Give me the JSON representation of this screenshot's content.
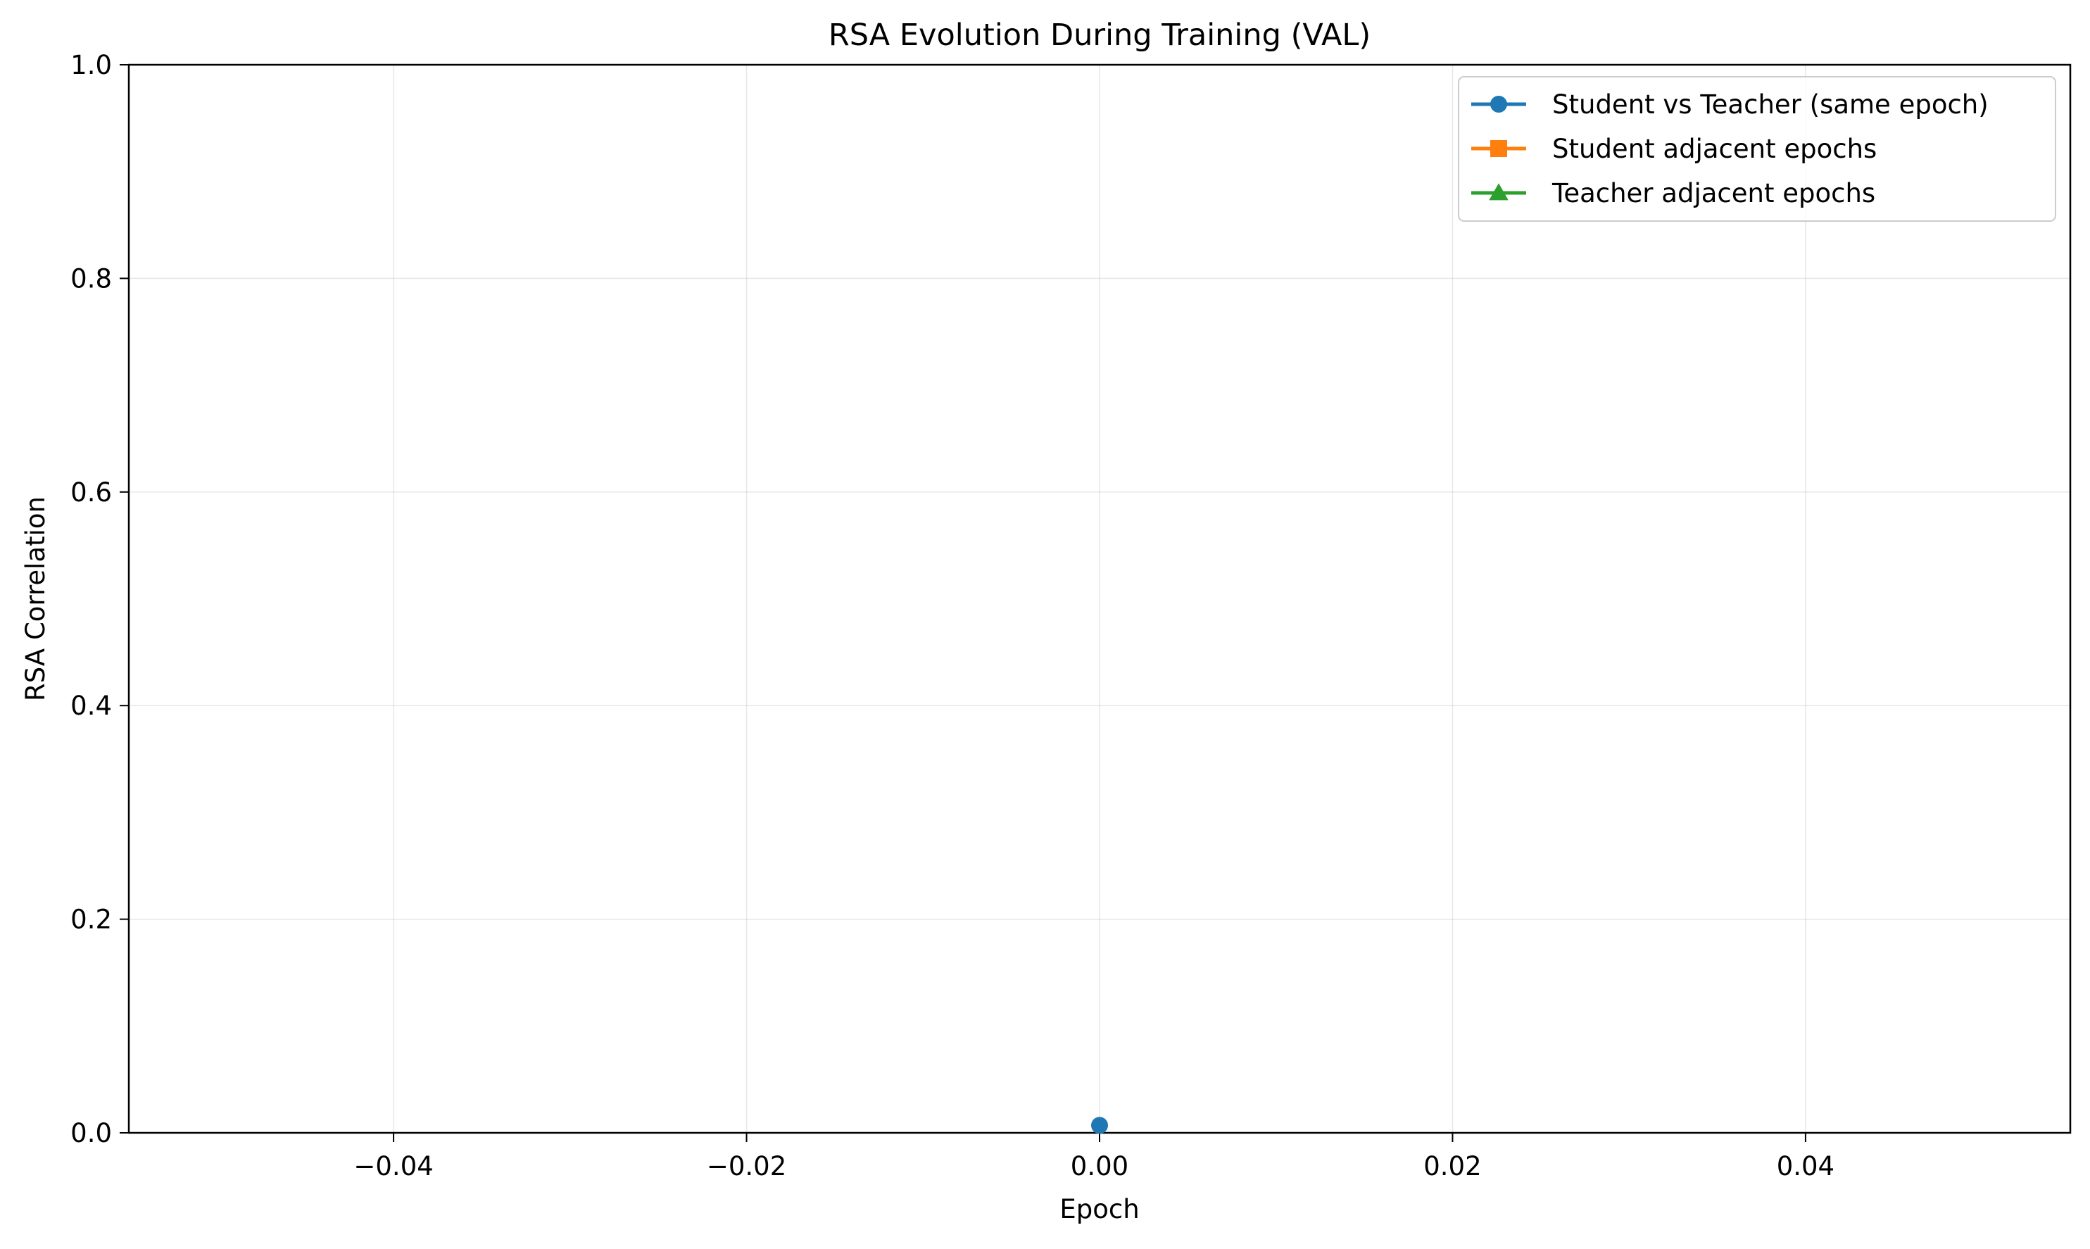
{
  "chart_data": {
    "type": "line",
    "title": "RSA Evolution During Training (VAL)",
    "xlabel": "Epoch",
    "ylabel": "RSA Correlation",
    "xlim": [
      -0.055,
      0.055
    ],
    "ylim": [
      0,
      1.0
    ],
    "x_ticks": [
      -0.04,
      -0.02,
      0.0,
      0.02,
      0.04
    ],
    "x_tick_labels": [
      "−0.04",
      "−0.02",
      "0.00",
      "0.02",
      "0.04"
    ],
    "y_ticks": [
      0.0,
      0.2,
      0.4,
      0.6,
      0.8,
      1.0
    ],
    "y_tick_labels": [
      "0.0",
      "0.2",
      "0.4",
      "0.6",
      "0.8",
      "1.0"
    ],
    "grid": true,
    "legend_position": "top-right",
    "series": [
      {
        "name": "Student vs Teacher (same epoch)",
        "color": "#1f77b4",
        "marker": "circle",
        "x": [
          0.0
        ],
        "y": [
          0.007
        ]
      },
      {
        "name": "Student adjacent epochs",
        "color": "#ff7f0e",
        "marker": "square",
        "x": [],
        "y": []
      },
      {
        "name": "Teacher adjacent epochs",
        "color": "#2ca02c",
        "marker": "triangle",
        "x": [],
        "y": []
      }
    ]
  }
}
